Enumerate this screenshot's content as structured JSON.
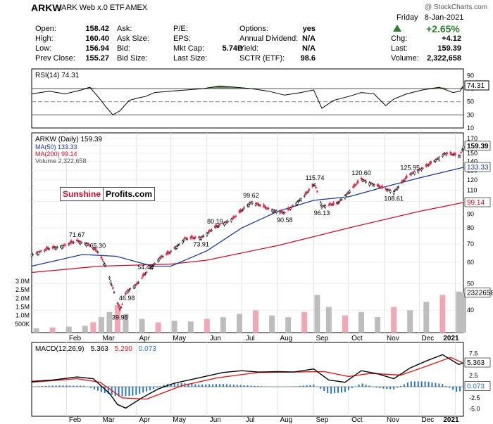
{
  "header": {
    "symbol": "ARKW",
    "name": "ARK Web x.0 ETF",
    "exchange": "AMEX",
    "credit": "@ StockCharts.com",
    "date": "Friday   8-Jan-2021",
    "pct_change": "+2.65%",
    "rows": [
      [
        [
          "Open:",
          "158.42"
        ],
        [
          "Ask:",
          ""
        ],
        [
          "P/E:",
          ""
        ],
        [
          "Options:",
          "yes"
        ]
      ],
      [
        [
          "High:",
          "160.40"
        ],
        [
          "Ask Size:",
          ""
        ],
        [
          "EPS:",
          ""
        ],
        [
          "Annual Dividend:",
          "N/A"
        ]
      ],
      [
        [
          "Low:",
          "156.94"
        ],
        [
          "Bid:",
          ""
        ],
        [
          "Mkt Cap:",
          "5.74B"
        ],
        [
          "Yield:",
          "N/A"
        ]
      ],
      [
        [
          "Prev Close:",
          "155.27"
        ],
        [
          "Bid Size:",
          ""
        ],
        [
          "Last Size:",
          ""
        ],
        [
          "SCTR (ETF):",
          "98.6"
        ]
      ]
    ],
    "right_rows": [
      [
        "Chg:",
        "+4.12"
      ],
      [
        "Last:",
        "159.39"
      ],
      [
        "Volume:",
        "2,322,658"
      ]
    ]
  },
  "watermark": {
    "part1": "Sunshine",
    "part2": "Profits.com"
  },
  "colors": {
    "up": "#000000",
    "down": "#d92b4a",
    "ma50": "#1f3a93",
    "ma200": "#c8102e",
    "volume": "#bdbdbd",
    "volume_down": "#f2a8b4",
    "rsi_fill": "#4a7a3f",
    "macd_signal": "#d62020",
    "histogram": "#2e75b6"
  },
  "chart_data": [
    {
      "type": "line",
      "title": "RSI(14) 74.31",
      "last_value": "74.31",
      "ylim": [
        10,
        100
      ],
      "yticks": [
        10,
        30,
        50,
        70,
        90
      ],
      "reference_lines": [
        70,
        50,
        30
      ],
      "x": [
        "2020-01-02",
        "2020-01-17",
        "2020-01-31",
        "2020-02-14",
        "2020-02-21",
        "2020-02-28",
        "2020-03-06",
        "2020-03-12",
        "2020-03-18",
        "2020-03-26",
        "2020-04-03",
        "2020-04-09",
        "2020-04-17",
        "2020-04-30",
        "2020-05-15",
        "2020-05-29",
        "2020-06-12",
        "2020-06-26",
        "2020-07-09",
        "2020-07-24",
        "2020-08-07",
        "2020-08-21",
        "2020-09-01",
        "2020-09-08",
        "2020-09-18",
        "2020-10-01",
        "2020-10-12",
        "2020-10-23",
        "2020-11-02",
        "2020-11-09",
        "2020-11-20",
        "2020-12-04",
        "2020-12-18",
        "2020-12-30",
        "2021-01-05",
        "2021-01-08"
      ],
      "values": [
        62,
        66,
        62,
        68,
        72,
        58,
        42,
        30,
        36,
        52,
        56,
        58,
        64,
        66,
        68,
        70,
        74,
        72,
        70,
        66,
        60,
        64,
        68,
        40,
        52,
        58,
        64,
        62,
        44,
        54,
        62,
        68,
        72,
        64,
        66,
        74.31
      ]
    },
    {
      "type": "line",
      "title": "ARKW (Daily) 159.39",
      "series_labels": {
        "ma50": "MA(50) 133.33",
        "ma200": "MA(200) 99.14",
        "volume": "Volume 2,322,658"
      },
      "last_labels": {
        "price": "159.39",
        "ma50": "133.33",
        "ma200": "99.14",
        "volume": "2322658"
      },
      "log_scale": true,
      "ylim": [
        36,
        172
      ],
      "yticks": [
        40,
        50,
        60,
        70,
        80,
        90,
        100,
        110,
        120,
        130,
        140,
        150,
        160,
        170
      ],
      "xticks": [
        {
          "date": "2020-02-01",
          "label": "Feb"
        },
        {
          "date": "2020-03-01",
          "label": "Mar"
        },
        {
          "date": "2020-04-01",
          "label": "Apr"
        },
        {
          "date": "2020-05-01",
          "label": "May"
        },
        {
          "date": "2020-06-01",
          "label": "Jun"
        },
        {
          "date": "2020-07-01",
          "label": "Jul"
        },
        {
          "date": "2020-08-01",
          "label": "Aug"
        },
        {
          "date": "2020-09-01",
          "label": "Sep"
        },
        {
          "date": "2020-10-01",
          "label": "Oct"
        },
        {
          "date": "2020-11-01",
          "label": "Nov"
        },
        {
          "date": "2020-12-01",
          "label": "Dec"
        },
        {
          "date": "2021-01-01",
          "label": "2021"
        }
      ],
      "price": {
        "x": [
          "2020-01-02",
          "2020-01-16",
          "2020-01-30",
          "2020-02-10",
          "2020-02-19",
          "2020-02-28",
          "2020-03-06",
          "2020-03-12",
          "2020-03-18",
          "2020-03-24",
          "2020-04-02",
          "2020-04-09",
          "2020-04-21",
          "2020-04-30",
          "2020-05-13",
          "2020-05-27",
          "2020-06-08",
          "2020-06-24",
          "2020-07-09",
          "2020-07-24",
          "2020-08-07",
          "2020-08-24",
          "2020-09-02",
          "2020-09-08",
          "2020-09-21",
          "2020-10-12",
          "2020-10-30",
          "2020-11-09",
          "2020-11-23",
          "2020-12-08",
          "2020-12-23",
          "2021-01-05",
          "2021-01-08"
        ],
        "values": [
          64,
          67,
          69,
          71.67,
          70,
          65.3,
          58,
          48,
          39.98,
          46.98,
          50,
          54.48,
          62,
          65,
          73,
          73.91,
          80.19,
          87,
          99.62,
          94,
          90.58,
          105,
          115.74,
          96.13,
          98,
          120.6,
          112,
          108.61,
          125.95,
          135,
          150,
          147,
          159.39
        ]
      },
      "ma50": {
        "x": [
          "2020-01-02",
          "2020-02-15",
          "2020-03-15",
          "2020-04-15",
          "2020-05-01",
          "2020-06-01",
          "2020-07-01",
          "2020-08-01",
          "2020-09-01",
          "2020-10-01",
          "2020-11-01",
          "2020-12-01",
          "2021-01-08"
        ],
        "values": [
          58,
          64,
          63,
          58,
          58,
          66,
          80,
          92,
          101,
          104,
          113,
          122,
          133.33
        ]
      },
      "ma200": {
        "x": [
          "2020-01-02",
          "2020-03-01",
          "2020-05-01",
          "2020-06-01",
          "2020-08-01",
          "2020-10-01",
          "2020-12-01",
          "2021-01-08"
        ],
        "values": [
          55,
          58,
          59,
          61,
          69,
          80,
          92,
          99.14
        ]
      },
      "annotations": [
        {
          "date": "2020-02-10",
          "value": 71.67,
          "label": "71.67"
        },
        {
          "date": "2020-02-28",
          "value": 65.3,
          "label": "65.30"
        },
        {
          "date": "2020-03-18",
          "value": 39.98,
          "label": "39.98"
        },
        {
          "date": "2020-04-09",
          "value": 54.48,
          "label": "54.48"
        },
        {
          "date": "2020-03-24",
          "value": 46.98,
          "label": "46.98"
        },
        {
          "date": "2020-05-27",
          "value": 73.91,
          "label": "73.91"
        },
        {
          "date": "2020-06-08",
          "value": 80.19,
          "label": "80.19"
        },
        {
          "date": "2020-07-09",
          "value": 99.62,
          "label": "99.62"
        },
        {
          "date": "2020-08-07",
          "value": 90.58,
          "label": "90.58"
        },
        {
          "date": "2020-09-02",
          "value": 115.74,
          "label": "115.74"
        },
        {
          "date": "2020-09-08",
          "value": 96.13,
          "label": "96.13"
        },
        {
          "date": "2020-10-12",
          "value": 120.6,
          "label": "120.60"
        },
        {
          "date": "2020-11-09",
          "value": 108.61,
          "label": "108.61"
        },
        {
          "date": "2020-11-23",
          "value": 125.95,
          "label": "125.95"
        }
      ],
      "volume_axis": {
        "ticks": [
          500000,
          1000000,
          1500000,
          2000000,
          2500000,
          3000000
        ],
        "tick_labels": [
          "500K",
          "1.0M",
          "1.5M",
          "2.0M",
          "2.5M",
          "3.0M"
        ],
        "max": 3700000
      },
      "volume": {
        "x": [
          "2020-01-06",
          "2020-01-20",
          "2020-02-03",
          "2020-02-17",
          "2020-02-24",
          "2020-03-02",
          "2020-03-09",
          "2020-03-16",
          "2020-03-23",
          "2020-04-06",
          "2020-04-20",
          "2020-05-04",
          "2020-05-18",
          "2020-06-01",
          "2020-06-15",
          "2020-06-29",
          "2020-07-13",
          "2020-07-27",
          "2020-08-10",
          "2020-08-24",
          "2020-09-04",
          "2020-09-14",
          "2020-09-28",
          "2020-10-12",
          "2020-10-26",
          "2020-11-09",
          "2020-11-23",
          "2020-12-07",
          "2020-12-21",
          "2021-01-04",
          "2021-01-08"
        ],
        "values": [
          250000,
          300000,
          350000,
          400000,
          600000,
          900000,
          1200000,
          1600000,
          1100000,
          800000,
          600000,
          700000,
          650000,
          800000,
          900000,
          1100000,
          1300000,
          1000000,
          900000,
          1200000,
          2200000,
          1500000,
          1000000,
          1200000,
          900000,
          1500000,
          1300000,
          1800000,
          2200000,
          2400000,
          2322658
        ]
      }
    },
    {
      "type": "line",
      "title": "MACD(12,26,9)",
      "legend": [
        {
          "label": "MACD(12,26,9)",
          "color": "#000000"
        },
        {
          "label": "5.363",
          "color": "#000000"
        },
        {
          "label": "5.290",
          "color": "#d62020"
        },
        {
          "label": "0.073",
          "color": "#2e75b6"
        }
      ],
      "last_labels": {
        "macd": "5.363",
        "histogram": "0.073"
      },
      "ylim": [
        -6,
        9
      ],
      "yticks": [
        -5.0,
        -2.5,
        0.0,
        2.5,
        5.0,
        7.5
      ],
      "ytick_labels": [
        "-5.0",
        "-2.5",
        "0.0",
        "2.5",
        "5.0",
        "7.5"
      ],
      "macd": {
        "x": [
          "2020-01-02",
          "2020-01-20",
          "2020-02-10",
          "2020-02-24",
          "2020-03-09",
          "2020-03-16",
          "2020-03-23",
          "2020-04-06",
          "2020-04-20",
          "2020-05-04",
          "2020-05-18",
          "2020-06-01",
          "2020-06-15",
          "2020-07-01",
          "2020-07-15",
          "2020-08-01",
          "2020-08-15",
          "2020-09-01",
          "2020-09-14",
          "2020-09-28",
          "2020-10-12",
          "2020-10-26",
          "2020-11-09",
          "2020-11-23",
          "2020-12-07",
          "2020-12-21",
          "2021-01-04",
          "2021-01-08"
        ],
        "values": [
          1.2,
          1.5,
          2.2,
          1.8,
          -1.5,
          -4.0,
          -4.8,
          -2.5,
          -0.5,
          0.8,
          1.6,
          2.4,
          3.2,
          3.6,
          3.3,
          3.4,
          3.3,
          4.0,
          1.5,
          1.0,
          3.6,
          2.9,
          1.8,
          4.2,
          5.8,
          7.2,
          5.0,
          5.363
        ]
      },
      "signal": {
        "x": [
          "2020-01-02",
          "2020-02-10",
          "2020-03-01",
          "2020-03-20",
          "2020-04-10",
          "2020-05-10",
          "2020-06-10",
          "2020-07-15",
          "2020-08-15",
          "2020-09-10",
          "2020-10-01",
          "2020-10-20",
          "2020-11-15",
          "2020-12-05",
          "2020-12-28",
          "2021-01-08"
        ],
        "values": [
          1.0,
          1.8,
          1.0,
          -2.5,
          -2.8,
          0.2,
          2.0,
          3.2,
          3.3,
          3.4,
          2.3,
          3.0,
          2.6,
          4.4,
          6.6,
          5.29
        ]
      },
      "histogram": {
        "x": [
          "2020-01-06",
          "2020-01-27",
          "2020-02-17",
          "2020-03-02",
          "2020-03-16",
          "2020-03-30",
          "2020-04-13",
          "2020-04-27",
          "2020-05-11",
          "2020-05-25",
          "2020-06-15",
          "2020-07-06",
          "2020-07-27",
          "2020-08-17",
          "2020-09-01",
          "2020-09-14",
          "2020-09-28",
          "2020-10-12",
          "2020-10-26",
          "2020-11-09",
          "2020-11-23",
          "2020-12-07",
          "2020-12-21",
          "2021-01-04",
          "2021-01-08"
        ],
        "values": [
          0.1,
          0.3,
          0.2,
          -1.2,
          -2.2,
          -2.0,
          -0.8,
          0.6,
          0.8,
          0.5,
          0.6,
          0.3,
          0.0,
          0.1,
          0.5,
          -1.6,
          -1.2,
          0.8,
          -0.3,
          -0.6,
          1.2,
          1.2,
          0.6,
          -1.4,
          0.073
        ]
      }
    }
  ]
}
